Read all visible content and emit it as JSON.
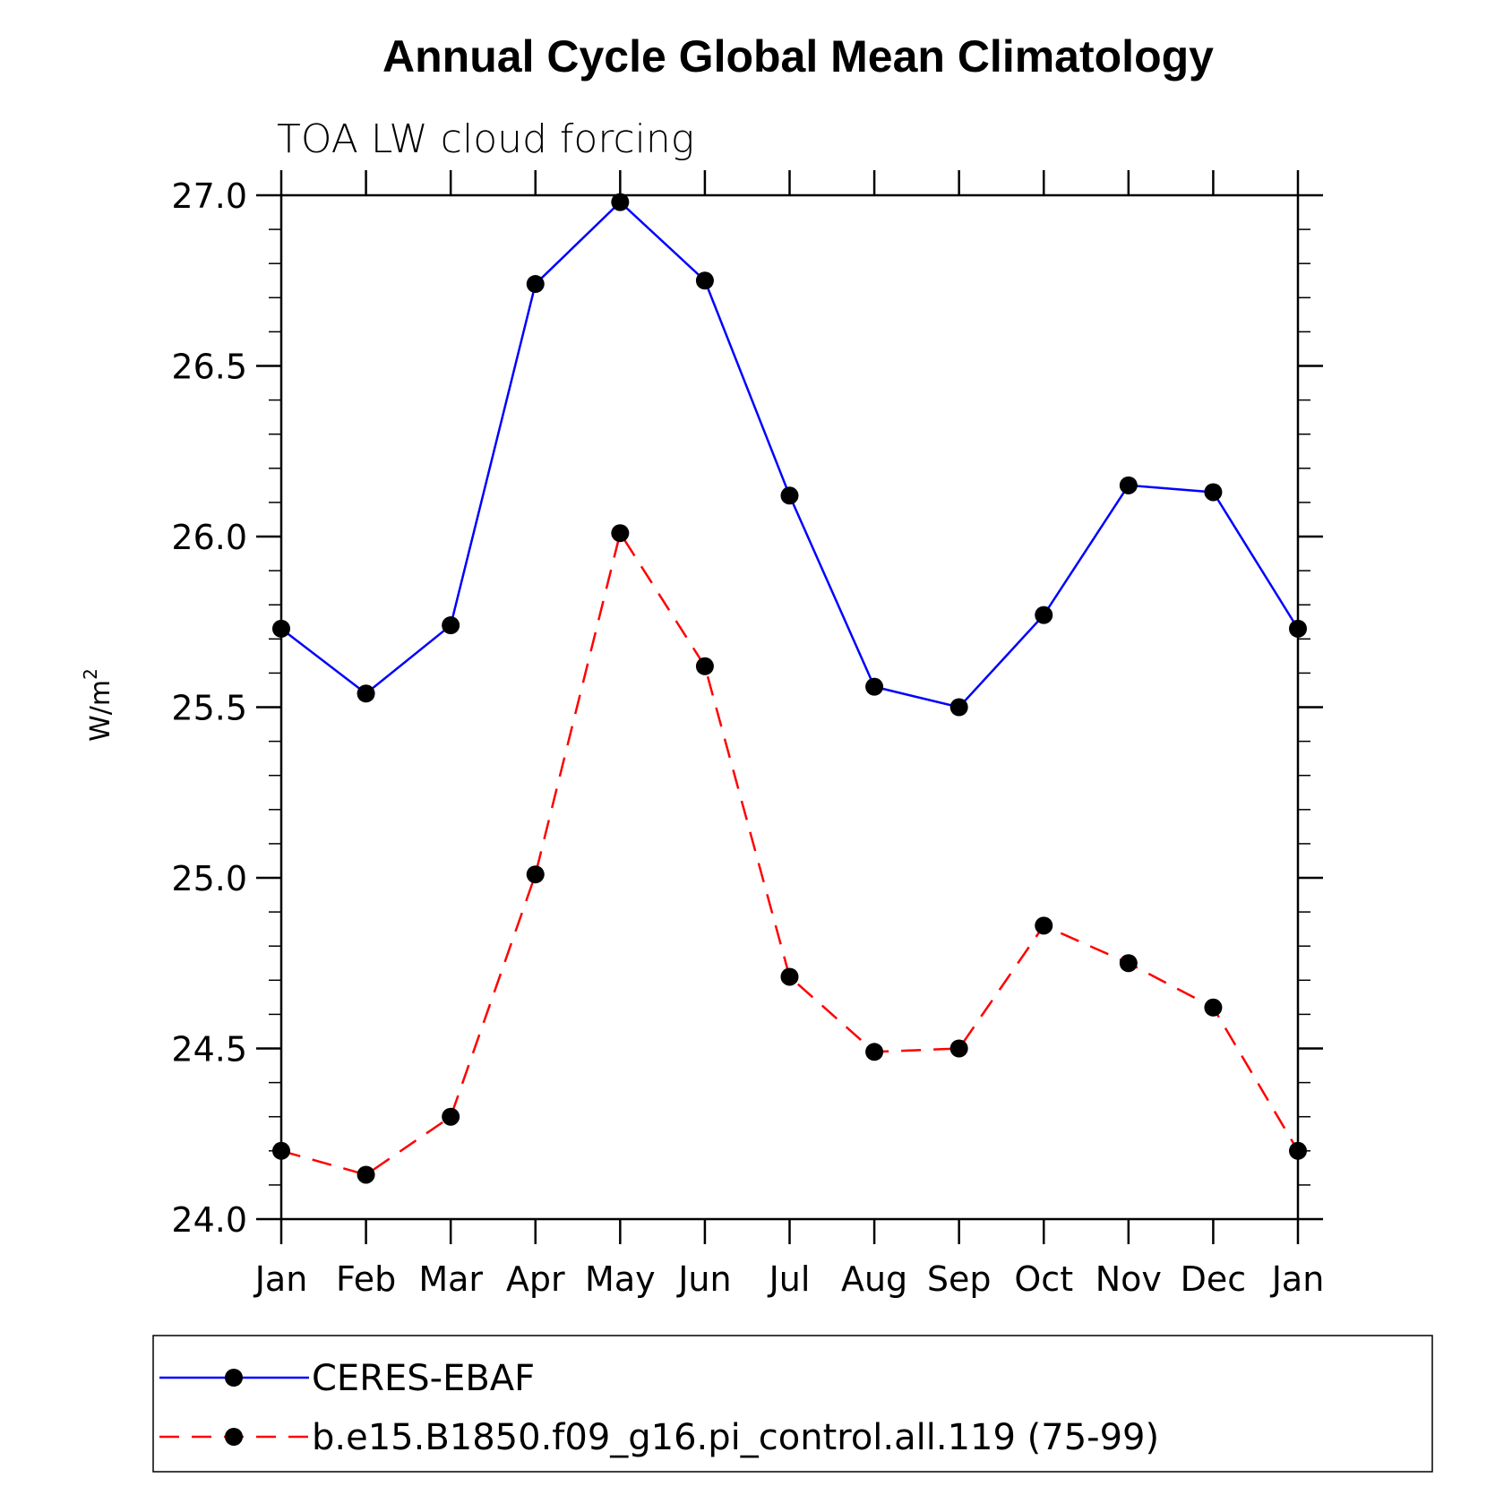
{
  "chart_data": {
    "type": "line",
    "title": "Annual Cycle Global Mean Climatology",
    "subtitle": "TOA LW cloud forcing",
    "xlabel": "",
    "ylabel": "W/m",
    "ylabel_superscript": "2",
    "categories": [
      "Jan",
      "Feb",
      "Mar",
      "Apr",
      "May",
      "Jun",
      "Jul",
      "Aug",
      "Sep",
      "Oct",
      "Nov",
      "Dec",
      "Jan"
    ],
    "ylim": [
      24.0,
      27.0
    ],
    "yticks": [
      "24.0",
      "24.5",
      "25.0",
      "25.5",
      "26.0",
      "26.5",
      "27.0"
    ],
    "series": [
      {
        "name": "CERES-EBAF",
        "color": "#0000ff",
        "dash": "solid",
        "values": [
          25.73,
          25.54,
          25.74,
          26.74,
          26.98,
          26.75,
          26.12,
          25.56,
          25.5,
          25.77,
          26.15,
          26.13,
          25.73
        ]
      },
      {
        "name": "b.e15.B1850.f09_g16.pi_control.all.119 (75-99)",
        "color": "#ff0000",
        "dash": "dashed",
        "values": [
          24.2,
          24.13,
          24.3,
          25.01,
          26.01,
          25.62,
          24.71,
          24.49,
          24.5,
          24.86,
          24.75,
          24.62,
          24.2
        ]
      }
    ],
    "legend_position": "bottom"
  }
}
